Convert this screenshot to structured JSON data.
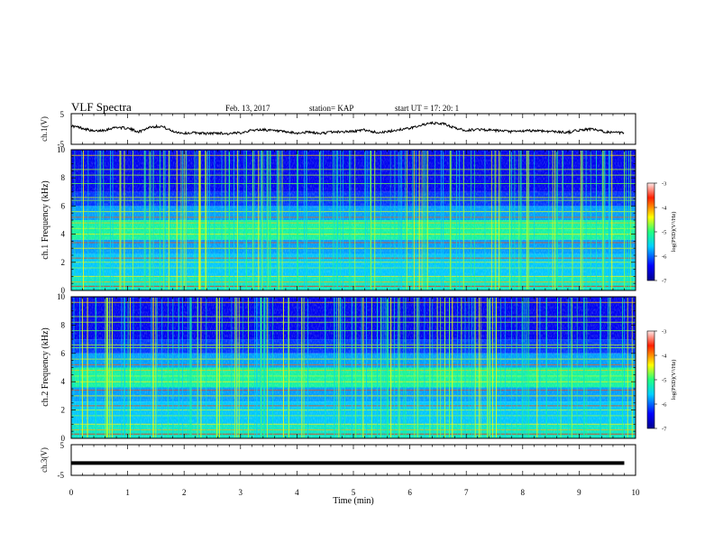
{
  "header": {
    "title": "VLF Spectra",
    "date": "Feb. 13, 2017",
    "station": "station= KAP",
    "start": "start  UT =   17: 20: 1"
  },
  "chart_data": [
    {
      "type": "line",
      "panel": "ch1-waveform",
      "ylabel": "ch.1(V)",
      "ylim": [
        -5,
        5
      ],
      "ytick_labels": [
        "5",
        "-5"
      ],
      "xlim": [
        0,
        10
      ],
      "x": [
        0,
        0.2,
        0.4,
        0.6,
        0.8,
        1.0,
        1.2,
        1.4,
        1.6,
        1.8,
        2.0,
        2.2,
        2.4,
        2.6,
        2.8,
        3.0,
        3.2,
        3.4,
        3.6,
        3.8,
        4.0,
        4.2,
        4.4,
        4.6,
        4.8,
        5.0,
        5.2,
        5.4,
        5.6,
        5.8,
        6.0,
        6.2,
        6.4,
        6.6,
        6.8,
        7.0,
        7.2,
        7.4,
        7.6,
        7.8,
        8.0,
        8.2,
        8.4,
        8.6,
        8.8,
        9.0,
        9.2,
        9.4,
        9.6,
        9.8
      ],
      "values": [
        1.0,
        0.3,
        -0.8,
        -0.3,
        0.6,
        0.2,
        -0.9,
        0.7,
        0.9,
        -0.8,
        -1.4,
        -1.2,
        -1.5,
        -1.3,
        -1.6,
        -1.2,
        -0.4,
        -0.2,
        -0.6,
        -1.0,
        -1.4,
        -1.0,
        -1.5,
        -1.0,
        -0.9,
        -0.8,
        -0.3,
        -1.1,
        -1.0,
        -0.2,
        0.2,
        1.3,
        1.9,
        1.7,
        0.3,
        -0.5,
        -0.1,
        -0.4,
        -0.6,
        -0.9,
        -0.7,
        -0.5,
        -0.7,
        -0.9,
        -1.1,
        -0.4,
        0.0,
        -0.7,
        -1.2,
        -1.3
      ]
    },
    {
      "type": "heatmap",
      "panel": "ch1-spectrogram",
      "ylabel": "ch.1  Frequency (kHz)",
      "ylim": [
        0,
        10
      ],
      "ytick_labels": [
        "0",
        "2",
        "4",
        "6",
        "8",
        "10"
      ],
      "xlim": [
        0,
        10
      ],
      "colorbar": {
        "label": "log(PSD)(V²/Hz)",
        "range": [
          -7,
          -3
        ],
        "tick_labels": [
          "-3",
          "-4",
          "-5",
          "-6",
          "-7"
        ]
      }
    },
    {
      "type": "heatmap",
      "panel": "ch2-spectrogram",
      "ylabel": "ch.2  Frequency (kHz)",
      "ylim": [
        0,
        10
      ],
      "ytick_labels": [
        "0",
        "2",
        "4",
        "6",
        "8",
        "10"
      ],
      "xlim": [
        0,
        10
      ],
      "colorbar": {
        "label": "log(PSD)(V²/Hz)",
        "range": [
          -7,
          -3
        ],
        "tick_labels": [
          "-3",
          "-4",
          "-5",
          "-6",
          "-7"
        ]
      }
    },
    {
      "type": "line",
      "panel": "ch3-waveform",
      "ylabel": "ch.3(V)",
      "ylim": [
        -5,
        5
      ],
      "ytick_labels": [
        "5",
        "-5"
      ],
      "xlim": [
        0,
        9.8
      ],
      "x": [
        0,
        9.8
      ],
      "values": [
        -1.0,
        -1.0
      ]
    }
  ],
  "xaxis": {
    "label": "Time (min)",
    "tick_labels": [
      "0",
      "1",
      "2",
      "3",
      "4",
      "5",
      "6",
      "7",
      "8",
      "9",
      "10"
    ]
  }
}
